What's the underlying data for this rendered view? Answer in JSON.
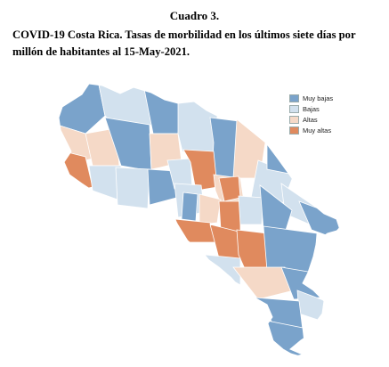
{
  "figure": {
    "label": "Cuadro 3.",
    "title": "COVID-19 Costa Rica. Tasas de morbilidad en los últimos siete días por millón de habitantes al 15-May-2021."
  },
  "legend": [
    {
      "key": "muy_bajas",
      "label": "Muy bajas",
      "color": "#7aa3cb"
    },
    {
      "key": "bajas",
      "label": "Bajas",
      "color": "#d2e1ee"
    },
    {
      "key": "altas",
      "label": "Altas",
      "color": "#f5d9c7"
    },
    {
      "key": "muy_altas",
      "label": "Muy altas",
      "color": "#e08a5e"
    }
  ],
  "map": {
    "border_color": "#ffffff",
    "region_outline": "#ffffff"
  }
}
